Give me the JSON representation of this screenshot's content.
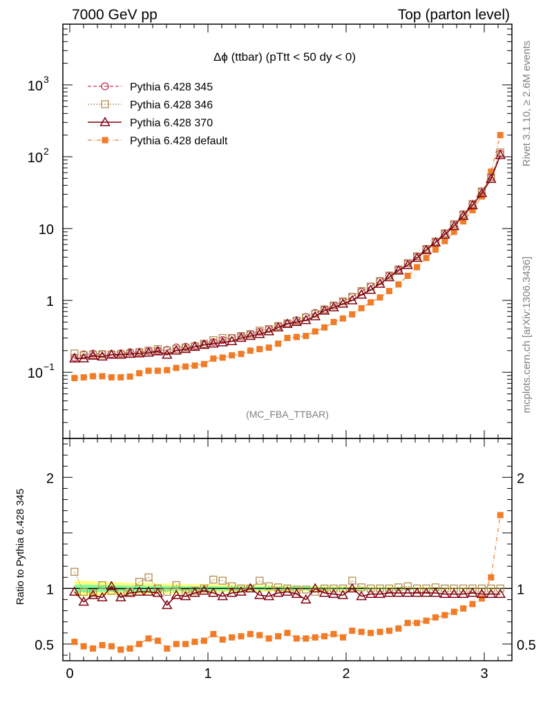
{
  "header": {
    "left_label": "7000 GeV pp",
    "right_label": "Top (parton level)"
  },
  "side_labels": {
    "upper": "Rivet 3.1.10, ≥ 2.6M events",
    "lower": "mcplots.cern.ch [arXiv:1306.3436]"
  },
  "chart_data": [
    {
      "type": "line",
      "title": "Δϕ (ttbar) (pTtt < 50 dy < 0)",
      "annotation": "(MC_FBA_TTBAR)",
      "yscale": "log",
      "xlim": [
        -0.05,
        3.2
      ],
      "ylim": [
        0.012,
        7000
      ],
      "y_ticks": [
        {
          "value": 0.1,
          "label": "10",
          "exp": "−1"
        },
        {
          "value": 1,
          "label": "1",
          "exp": ""
        },
        {
          "value": 10,
          "label": "10",
          "exp": ""
        },
        {
          "value": 100,
          "label": "10",
          "exp": "2"
        },
        {
          "value": 1000,
          "label": "10",
          "exp": "3"
        }
      ],
      "legend_position": "top-left",
      "x": [
        0.034,
        0.101,
        0.168,
        0.235,
        0.302,
        0.369,
        0.436,
        0.503,
        0.57,
        0.637,
        0.704,
        0.771,
        0.838,
        0.905,
        0.972,
        1.039,
        1.106,
        1.173,
        1.24,
        1.307,
        1.374,
        1.441,
        1.508,
        1.575,
        1.642,
        1.709,
        1.776,
        1.843,
        1.91,
        1.977,
        2.044,
        2.111,
        2.178,
        2.245,
        2.312,
        2.379,
        2.446,
        2.513,
        2.58,
        2.647,
        2.714,
        2.781,
        2.848,
        2.915,
        2.982,
        3.049,
        3.116
      ],
      "series": [
        {
          "name": "Pythia 6.428 345",
          "color": "#c0304a",
          "marker": "circle",
          "dash": "5,3",
          "values": [
            0.16,
            0.178,
            0.182,
            0.18,
            0.18,
            0.183,
            0.19,
            0.193,
            0.196,
            0.2,
            0.205,
            0.222,
            0.226,
            0.235,
            0.245,
            0.263,
            0.28,
            0.3,
            0.318,
            0.34,
            0.365,
            0.4,
            0.44,
            0.48,
            0.53,
            0.59,
            0.67,
            0.75,
            0.85,
            0.97,
            1.12,
            1.32,
            1.56,
            1.86,
            2.22,
            2.7,
            3.3,
            4.1,
            5.2,
            6.6,
            8.6,
            11.5,
            15.8,
            22,
            33,
            52,
            110
          ]
        },
        {
          "name": "Pythia 6.428 346",
          "color": "#b08c50",
          "marker": "square",
          "dash": "2,2",
          "values": [
            0.183,
            0.172,
            0.175,
            0.178,
            0.176,
            0.178,
            0.182,
            0.19,
            0.2,
            0.21,
            0.2,
            0.21,
            0.22,
            0.23,
            0.25,
            0.28,
            0.3,
            0.3,
            0.32,
            0.34,
            0.38,
            0.4,
            0.44,
            0.48,
            0.52,
            0.58,
            0.65,
            0.75,
            0.85,
            0.97,
            1.12,
            1.35,
            1.56,
            1.86,
            2.22,
            2.7,
            3.3,
            4.1,
            5.2,
            6.6,
            8.6,
            11.5,
            15.8,
            22,
            33,
            52,
            115
          ]
        },
        {
          "name": "Pythia 6.428 370",
          "color": "#800010",
          "marker": "triangle",
          "dash": "",
          "values": [
            0.155,
            0.156,
            0.17,
            0.165,
            0.175,
            0.175,
            0.18,
            0.183,
            0.187,
            0.195,
            0.175,
            0.2,
            0.21,
            0.225,
            0.24,
            0.25,
            0.26,
            0.27,
            0.3,
            0.32,
            0.34,
            0.37,
            0.42,
            0.47,
            0.5,
            0.53,
            0.6,
            0.72,
            0.8,
            0.9,
            1.0,
            1.2,
            1.4,
            1.7,
            2.1,
            2.6,
            3.1,
            3.9,
            5.0,
            6.4,
            8.2,
            10.8,
            15.0,
            21.0,
            31.0,
            49.0,
            105
          ]
        },
        {
          "name": "Pythia 6.428 default",
          "color": "#f07c28",
          "marker": "square-filled",
          "dash": "6,3,1,3",
          "values": [
            0.083,
            0.085,
            0.088,
            0.088,
            0.085,
            0.085,
            0.087,
            0.097,
            0.105,
            0.105,
            0.107,
            0.115,
            0.12,
            0.124,
            0.13,
            0.155,
            0.16,
            0.172,
            0.18,
            0.2,
            0.21,
            0.22,
            0.25,
            0.3,
            0.31,
            0.32,
            0.37,
            0.42,
            0.5,
            0.56,
            0.64,
            0.78,
            0.94,
            1.1,
            1.35,
            1.67,
            2.2,
            2.9,
            3.9,
            5.1,
            6.7,
            9.0,
            12.6,
            18.0,
            28.0,
            62.0,
            200
          ]
        }
      ]
    },
    {
      "type": "line",
      "ylabel": "Ratio to Pythia 6.428 345",
      "xlim": [
        -0.05,
        3.2
      ],
      "ylim": [
        0.35,
        2.35
      ],
      "x_ticks": [
        0,
        1,
        2,
        3
      ],
      "y_ticks_left": [
        0.5,
        1,
        2
      ],
      "y_ticks_right": [
        0.5,
        1,
        2
      ],
      "reference": 1,
      "bands": [
        {
          "name": "yellow-band",
          "color": "#ffff80",
          "half_width": [
            0.07,
            0.07,
            0.065,
            0.06,
            0.06,
            0.055,
            0.05,
            0.05,
            0.05,
            0.045,
            0.045,
            0.045,
            0.04,
            0.04,
            0.04,
            0.04,
            0.035,
            0.035,
            0.035,
            0.035,
            0.03,
            0.03,
            0.03,
            0.03,
            0.025,
            0.025,
            0.025,
            0.025,
            0.02,
            0.02,
            0.02,
            0.02,
            0.015,
            0.015,
            0.015,
            0.015,
            0.012,
            0.012,
            0.012,
            0.012,
            0.01,
            0.01,
            0.01,
            0.01,
            0.008,
            0.008,
            0.008
          ]
        },
        {
          "name": "green-band",
          "color": "#80ff9a",
          "half_width": [
            0.035,
            0.035,
            0.033,
            0.03,
            0.03,
            0.028,
            0.025,
            0.025,
            0.025,
            0.023,
            0.023,
            0.022,
            0.02,
            0.02,
            0.02,
            0.02,
            0.018,
            0.018,
            0.018,
            0.017,
            0.015,
            0.015,
            0.015,
            0.015,
            0.013,
            0.013,
            0.012,
            0.012,
            0.01,
            0.01,
            0.01,
            0.01,
            0.008,
            0.008,
            0.008,
            0.008,
            0.006,
            0.006,
            0.006,
            0.006,
            0.005,
            0.005,
            0.005,
            0.005,
            0.004,
            0.004,
            0.004
          ]
        }
      ],
      "x": [
        0.034,
        0.101,
        0.168,
        0.235,
        0.302,
        0.369,
        0.436,
        0.503,
        0.57,
        0.637,
        0.704,
        0.771,
        0.838,
        0.905,
        0.972,
        1.039,
        1.106,
        1.173,
        1.24,
        1.307,
        1.374,
        1.441,
        1.508,
        1.575,
        1.642,
        1.709,
        1.776,
        1.843,
        1.91,
        1.977,
        2.044,
        2.111,
        2.178,
        2.245,
        2.312,
        2.379,
        2.446,
        2.513,
        2.58,
        2.647,
        2.714,
        2.781,
        2.848,
        2.915,
        2.982,
        3.049,
        3.116
      ],
      "series": [
        {
          "name": "Pythia 6.428 346",
          "color": "#b08c50",
          "marker": "square",
          "dash": "2,2",
          "values": [
            1.15,
            0.97,
            0.96,
            1.03,
            0.98,
            0.96,
            0.97,
            1.06,
            1.1,
            1.0,
            0.97,
            1.03,
            0.96,
            0.98,
            1.0,
            1.08,
            1.07,
            1.02,
            1.0,
            1.0,
            1.07,
            1.02,
            1.01,
            1.0,
            0.99,
            0.99,
            0.97,
            1.0,
            1.0,
            1.0,
            1.07,
            1.01,
            1.0,
            1.0,
            1.0,
            1.01,
            1.02,
            1.0,
            1.0,
            1.01,
            1.0,
            1.0,
            1.0,
            1.0,
            1.0,
            1.0,
            1.0
          ]
        },
        {
          "name": "Pythia 6.428 370",
          "color": "#800010",
          "marker": "triangle",
          "dash": "",
          "values": [
            0.97,
            0.88,
            0.94,
            0.92,
            1.02,
            0.92,
            0.96,
            0.97,
            0.97,
            0.96,
            0.85,
            0.94,
            0.93,
            0.96,
            0.98,
            0.96,
            0.93,
            0.96,
            0.97,
            1.0,
            0.94,
            0.93,
            0.96,
            0.97,
            0.95,
            0.9,
            1.0,
            0.96,
            0.95,
            0.94,
            1.0,
            0.93,
            0.95,
            0.95,
            0.96,
            0.96,
            0.96,
            0.96,
            0.96,
            0.96,
            0.95,
            0.95,
            0.95,
            0.96,
            0.95,
            0.95,
            0.95
          ]
        },
        {
          "name": "Pythia 6.428 default",
          "color": "#f07c28",
          "marker": "square-filled",
          "dash": "6,3,1,3",
          "values": [
            0.52,
            0.48,
            0.46,
            0.49,
            0.48,
            0.45,
            0.46,
            0.5,
            0.55,
            0.53,
            0.46,
            0.5,
            0.5,
            0.52,
            0.53,
            0.59,
            0.54,
            0.56,
            0.57,
            0.59,
            0.58,
            0.55,
            0.57,
            0.6,
            0.55,
            0.55,
            0.56,
            0.57,
            0.59,
            0.56,
            0.62,
            0.61,
            0.6,
            0.61,
            0.62,
            0.64,
            0.69,
            0.69,
            0.71,
            0.74,
            0.76,
            0.79,
            0.82,
            0.86,
            0.91,
            1.1,
            1.66
          ]
        }
      ]
    }
  ]
}
